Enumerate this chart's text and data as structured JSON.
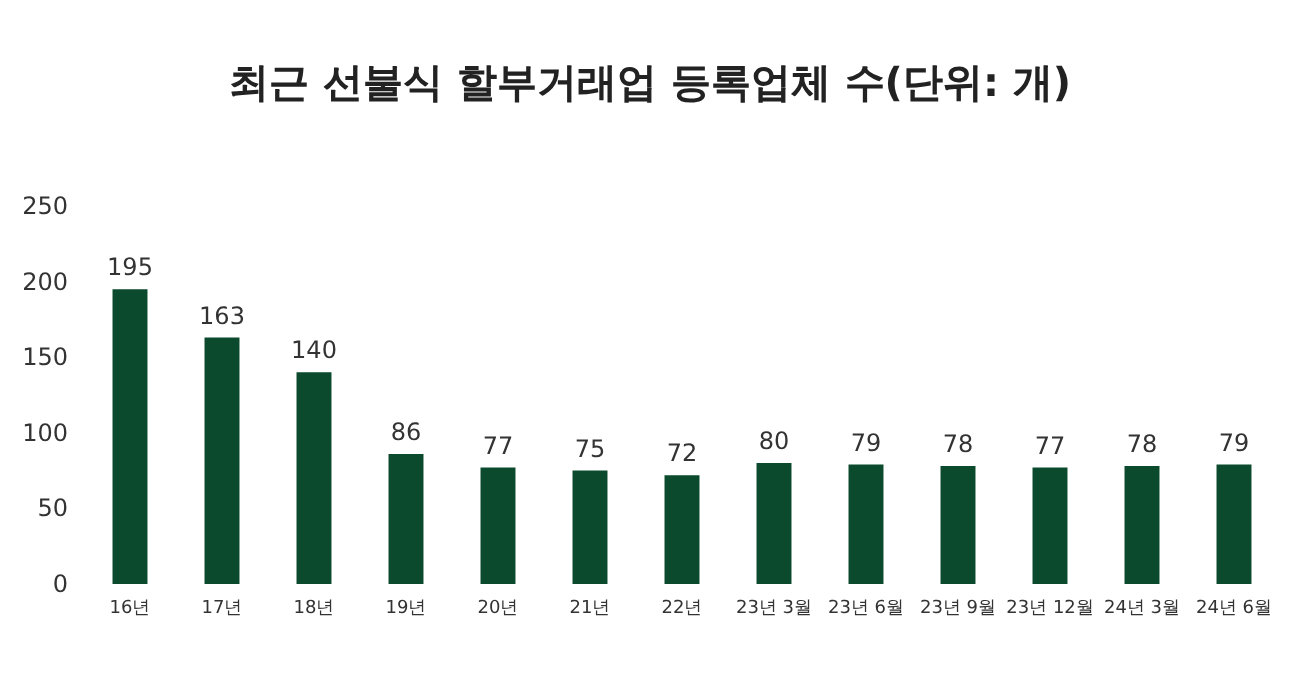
{
  "chart_data": {
    "type": "bar",
    "title": "최근 선불식 할부거래업 등록업체 수(단위: 개)",
    "categories": [
      "16년",
      "17년",
      "18년",
      "19년",
      "20년",
      "21년",
      "22년",
      "23년 3월",
      "23년 6월",
      "23년 9월",
      "23년 12월",
      "24년 3월",
      "24년 6월"
    ],
    "values": [
      195,
      163,
      140,
      86,
      77,
      75,
      72,
      80,
      79,
      78,
      77,
      78,
      79
    ],
    "color": "#0b4a2c",
    "ylim": [
      0,
      250
    ],
    "yticks": [
      0,
      50,
      100,
      150,
      200,
      250
    ],
    "grid": false,
    "data_labels": true
  }
}
